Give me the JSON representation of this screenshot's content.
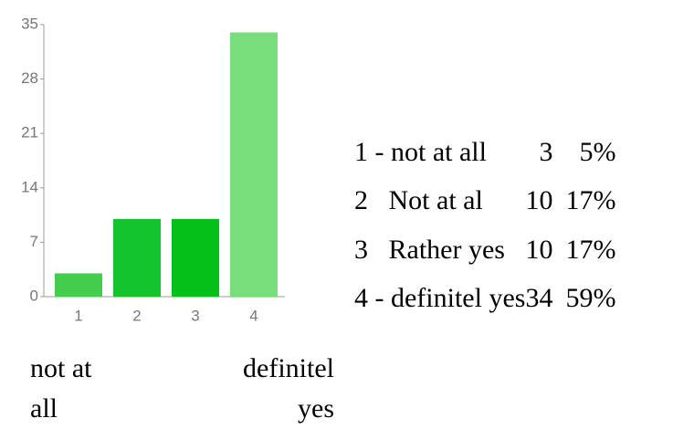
{
  "chart_data": {
    "type": "bar",
    "categories": [
      "1",
      "2",
      "3",
      "4"
    ],
    "values": [
      3,
      10,
      10,
      34
    ],
    "colors": [
      "#44cc4c",
      "#14c22c",
      "#06c01a",
      "#78de7c"
    ],
    "ylim": [
      0,
      35
    ],
    "yticks": [
      0,
      7,
      14,
      21,
      28,
      35
    ],
    "low_label": "not at all",
    "high_label": "definitel yes",
    "table": {
      "labels": [
        "1 - not at all",
        "2   Not at al",
        "3   Rather yes",
        "4 - definitel yes"
      ],
      "percents": [
        "5%",
        "17%",
        "17%",
        "59%"
      ]
    }
  }
}
